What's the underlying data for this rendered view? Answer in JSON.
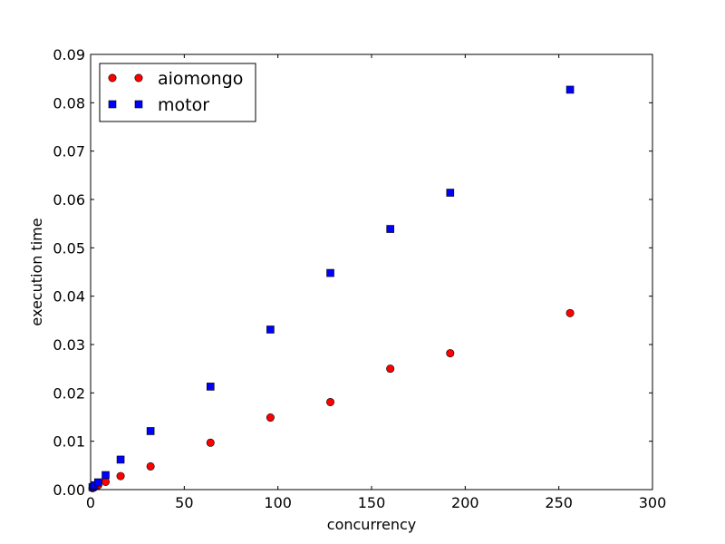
{
  "chart_data": {
    "type": "scatter",
    "title": "",
    "xlabel": "concurrency",
    "ylabel": "execution time",
    "xlim": [
      0,
      300
    ],
    "ylim": [
      0,
      0.09
    ],
    "xticks": [
      0,
      50,
      100,
      150,
      200,
      250,
      300
    ],
    "yticks": [
      0.0,
      0.01,
      0.02,
      0.03,
      0.04,
      0.05,
      0.06,
      0.07,
      0.08,
      0.09
    ],
    "xtick_labels": [
      "0",
      "50",
      "100",
      "150",
      "200",
      "250",
      "300"
    ],
    "ytick_labels": [
      "0.00",
      "0.01",
      "0.02",
      "0.03",
      "0.04",
      "0.05",
      "0.06",
      "0.07",
      "0.08",
      "0.09"
    ],
    "grid": false,
    "legend": {
      "position": "top-left"
    },
    "series": [
      {
        "name": "aiomongo",
        "marker": "circle",
        "color": "#ff0000",
        "x": [
          1,
          2,
          4,
          8,
          16,
          32,
          64,
          96,
          128,
          160,
          192,
          256
        ],
        "y": [
          0.0003,
          0.0005,
          0.0009,
          0.0016,
          0.0028,
          0.0048,
          0.0097,
          0.0149,
          0.0181,
          0.025,
          0.0282,
          0.0365
        ]
      },
      {
        "name": "motor",
        "marker": "square",
        "color": "#0000ff",
        "x": [
          1,
          2,
          4,
          8,
          16,
          32,
          64,
          96,
          128,
          160,
          192,
          256
        ],
        "y": [
          0.0005,
          0.0009,
          0.0015,
          0.003,
          0.0062,
          0.0121,
          0.0213,
          0.0331,
          0.0448,
          0.0539,
          0.0614,
          0.0827
        ]
      }
    ]
  }
}
